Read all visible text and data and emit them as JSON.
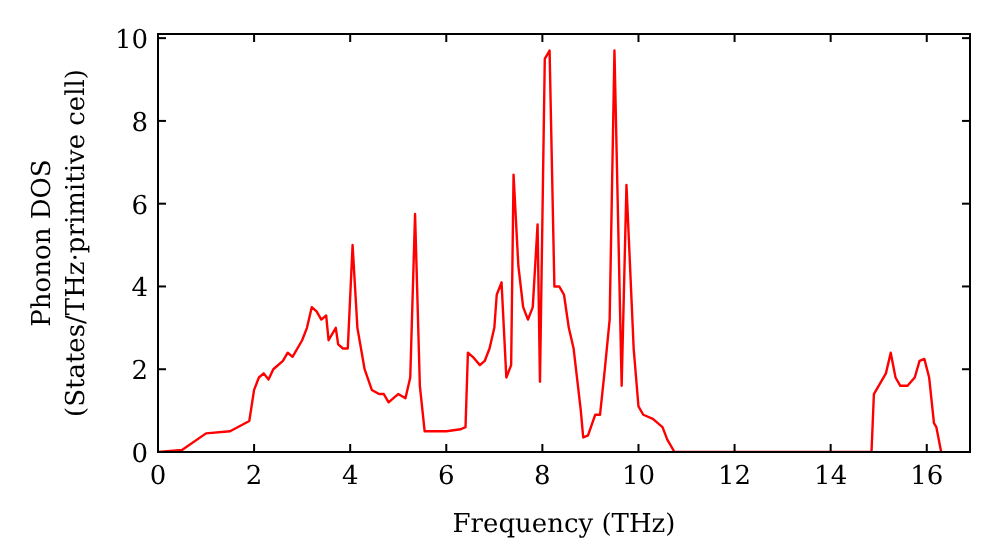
{
  "chart_data": {
    "type": "line",
    "xlabel": "Frequency (THz)",
    "ylabel": "Phonon DOS\n(States/THz·primitive cell)",
    "xlim": [
      0,
      16.9
    ],
    "ylim": [
      0,
      10.1
    ],
    "xticks": [
      0,
      2,
      4,
      6,
      8,
      10,
      12,
      14,
      16
    ],
    "yticks": [
      0,
      2,
      4,
      6,
      8,
      10
    ],
    "grid": false,
    "line_style": "solid",
    "series": [
      {
        "color": "#ff0000",
        "x": [
          0,
          0.5,
          1.0,
          1.5,
          1.9,
          2.0,
          2.1,
          2.2,
          2.3,
          2.4,
          2.6,
          2.7,
          2.8,
          3.0,
          3.1,
          3.2,
          3.3,
          3.4,
          3.5,
          3.55,
          3.7,
          3.75,
          3.85,
          3.95,
          4.05,
          4.15,
          4.3,
          4.45,
          4.6,
          4.7,
          4.8,
          4.9,
          5.0,
          5.15,
          5.25,
          5.35,
          5.45,
          5.55,
          6.0,
          6.3,
          6.4,
          6.45,
          6.55,
          6.7,
          6.8,
          6.9,
          7.0,
          7.05,
          7.15,
          7.25,
          7.35,
          7.4,
          7.5,
          7.6,
          7.7,
          7.8,
          7.9,
          7.95,
          8.05,
          8.15,
          8.25,
          8.35,
          8.45,
          8.55,
          8.65,
          8.8,
          8.85,
          8.95,
          9.1,
          9.2,
          9.3,
          9.4,
          9.5,
          9.65,
          9.75,
          9.9,
          10.0,
          10.1,
          10.3,
          10.5,
          10.6,
          10.75,
          14.85,
          14.9,
          15.05,
          15.15,
          15.25,
          15.35,
          15.45,
          15.6,
          15.75,
          15.85,
          15.95,
          16.05,
          16.15,
          16.2,
          16.3
        ],
        "values": [
          0,
          0.05,
          0.45,
          0.5,
          0.75,
          1.5,
          1.8,
          1.9,
          1.75,
          2.0,
          2.2,
          2.4,
          2.3,
          2.7,
          3.0,
          3.5,
          3.4,
          3.2,
          3.3,
          2.7,
          3.0,
          2.6,
          2.5,
          2.5,
          5.0,
          3.0,
          2.0,
          1.5,
          1.4,
          1.4,
          1.2,
          1.3,
          1.4,
          1.3,
          1.8,
          5.75,
          1.6,
          0.5,
          0.5,
          0.55,
          0.6,
          2.4,
          2.3,
          2.1,
          2.2,
          2.5,
          3.0,
          3.8,
          4.1,
          1.8,
          2.1,
          6.7,
          4.5,
          3.5,
          3.2,
          3.5,
          5.5,
          1.7,
          9.5,
          9.7,
          4.0,
          4.0,
          3.8,
          3.0,
          2.5,
          1.0,
          0.35,
          0.4,
          0.9,
          0.9,
          2.0,
          3.2,
          9.7,
          1.6,
          6.45,
          2.5,
          1.1,
          0.9,
          0.8,
          0.6,
          0.3,
          0,
          0,
          1.4,
          1.7,
          1.9,
          2.4,
          1.8,
          1.6,
          1.6,
          1.8,
          2.2,
          2.25,
          1.8,
          0.7,
          0.6,
          0
        ]
      }
    ]
  }
}
